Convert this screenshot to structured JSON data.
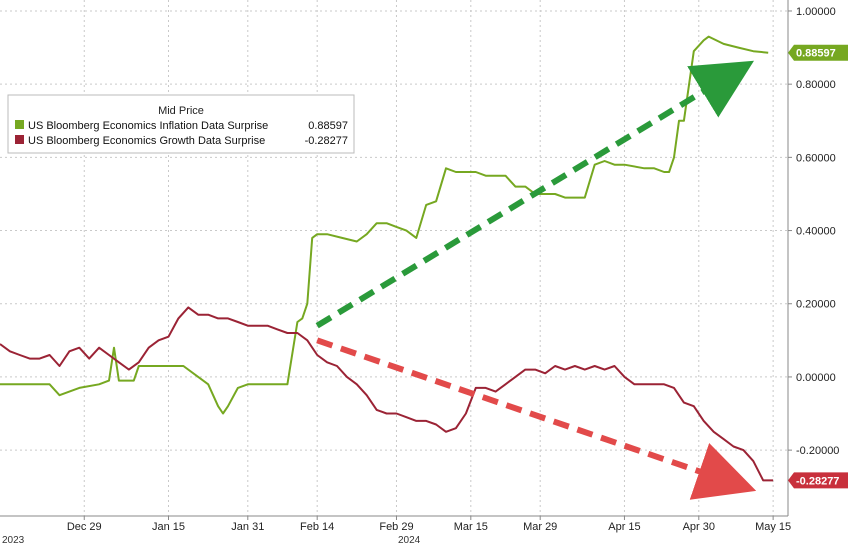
{
  "chart_data": {
    "type": "line",
    "title": "",
    "xlabel": "",
    "ylabel": "",
    "ylim": [
      -0.38,
      1.03
    ],
    "grid": true,
    "legend_placement": "top-left",
    "legend_title": "Mid Price",
    "x_ticks": [
      "Dec 29",
      "Jan 15",
      "Jan 31",
      "Feb 14",
      "Feb 29",
      "Mar 15",
      "Mar 29",
      "Apr 15",
      "Apr 30",
      "May 15"
    ],
    "x_tick_pos": [
      11,
      28,
      44,
      58,
      74,
      89,
      103,
      120,
      135,
      150
    ],
    "year_labels": [
      "2023",
      "2024"
    ],
    "y_ticks": [
      -0.2,
      0.0,
      0.2,
      0.4,
      0.6,
      0.8,
      1.0
    ],
    "y_tick_labels": [
      "-0.20000",
      "0.00000",
      "0.20000",
      "0.40000",
      "0.60000",
      "0.80000",
      "1.00000"
    ],
    "series": [
      {
        "name": "US Bloomberg Economics Inflation Data Surprise",
        "last": "0.88597",
        "color": "#76a821",
        "points": [
          [
            -6,
            -0.02
          ],
          [
            -3,
            -0.02
          ],
          [
            0,
            -0.02
          ],
          [
            4,
            -0.02
          ],
          [
            6,
            -0.05
          ],
          [
            8,
            -0.04
          ],
          [
            10,
            -0.03
          ],
          [
            14,
            -0.02
          ],
          [
            16,
            -0.01
          ],
          [
            17,
            0.08
          ],
          [
            18,
            -0.01
          ],
          [
            21,
            -0.01
          ],
          [
            22,
            0.03
          ],
          [
            24,
            0.03
          ],
          [
            28,
            0.03
          ],
          [
            31,
            0.03
          ],
          [
            34,
            0.0
          ],
          [
            36,
            -0.02
          ],
          [
            38,
            -0.08
          ],
          [
            39,
            -0.1
          ],
          [
            40,
            -0.08
          ],
          [
            42,
            -0.03
          ],
          [
            44,
            -0.02
          ],
          [
            46,
            -0.02
          ],
          [
            48,
            -0.02
          ],
          [
            50,
            -0.02
          ],
          [
            52,
            -0.02
          ],
          [
            54,
            0.15
          ],
          [
            55,
            0.16
          ],
          [
            56,
            0.2
          ],
          [
            57,
            0.38
          ],
          [
            58,
            0.39
          ],
          [
            60,
            0.39
          ],
          [
            63,
            0.38
          ],
          [
            66,
            0.37
          ],
          [
            68,
            0.39
          ],
          [
            70,
            0.42
          ],
          [
            72,
            0.42
          ],
          [
            74,
            0.41
          ],
          [
            76,
            0.4
          ],
          [
            78,
            0.38
          ],
          [
            80,
            0.47
          ],
          [
            82,
            0.48
          ],
          [
            84,
            0.57
          ],
          [
            86,
            0.56
          ],
          [
            88,
            0.56
          ],
          [
            90,
            0.56
          ],
          [
            92,
            0.55
          ],
          [
            94,
            0.55
          ],
          [
            96,
            0.55
          ],
          [
            98,
            0.52
          ],
          [
            100,
            0.52
          ],
          [
            102,
            0.5
          ],
          [
            104,
            0.5
          ],
          [
            106,
            0.5
          ],
          [
            108,
            0.49
          ],
          [
            110,
            0.49
          ],
          [
            112,
            0.49
          ],
          [
            114,
            0.58
          ],
          [
            116,
            0.59
          ],
          [
            118,
            0.58
          ],
          [
            120,
            0.58
          ],
          [
            124,
            0.57
          ],
          [
            126,
            0.57
          ],
          [
            128,
            0.56
          ],
          [
            129,
            0.56
          ],
          [
            130,
            0.6
          ],
          [
            131,
            0.7
          ],
          [
            132,
            0.7
          ],
          [
            134,
            0.89
          ],
          [
            136,
            0.92
          ],
          [
            137,
            0.93
          ],
          [
            140,
            0.91
          ],
          [
            143,
            0.9
          ],
          [
            146,
            0.89
          ],
          [
            149,
            0.88597
          ]
        ]
      },
      {
        "name": "US Bloomberg Economics Growth Data Surprise",
        "last": "-0.28277",
        "color": "#9b2335",
        "points": [
          [
            -6,
            0.09
          ],
          [
            -4,
            0.07
          ],
          [
            -2,
            0.06
          ],
          [
            0,
            0.05
          ],
          [
            2,
            0.05
          ],
          [
            4,
            0.06
          ],
          [
            6,
            0.03
          ],
          [
            8,
            0.07
          ],
          [
            10,
            0.08
          ],
          [
            12,
            0.05
          ],
          [
            14,
            0.08
          ],
          [
            16,
            0.06
          ],
          [
            18,
            0.04
          ],
          [
            20,
            0.02
          ],
          [
            22,
            0.04
          ],
          [
            24,
            0.08
          ],
          [
            26,
            0.1
          ],
          [
            28,
            0.11
          ],
          [
            30,
            0.16
          ],
          [
            32,
            0.19
          ],
          [
            34,
            0.17
          ],
          [
            36,
            0.17
          ],
          [
            38,
            0.16
          ],
          [
            40,
            0.16
          ],
          [
            42,
            0.15
          ],
          [
            44,
            0.14
          ],
          [
            46,
            0.14
          ],
          [
            48,
            0.14
          ],
          [
            50,
            0.13
          ],
          [
            52,
            0.12
          ],
          [
            54,
            0.12
          ],
          [
            56,
            0.1
          ],
          [
            58,
            0.06
          ],
          [
            60,
            0.04
          ],
          [
            62,
            0.03
          ],
          [
            64,
            0.0
          ],
          [
            66,
            -0.02
          ],
          [
            68,
            -0.05
          ],
          [
            70,
            -0.09
          ],
          [
            72,
            -0.1
          ],
          [
            74,
            -0.1
          ],
          [
            76,
            -0.11
          ],
          [
            78,
            -0.12
          ],
          [
            80,
            -0.12
          ],
          [
            82,
            -0.13
          ],
          [
            84,
            -0.15
          ],
          [
            86,
            -0.14
          ],
          [
            88,
            -0.1
          ],
          [
            90,
            -0.03
          ],
          [
            92,
            -0.03
          ],
          [
            94,
            -0.04
          ],
          [
            96,
            -0.02
          ],
          [
            98,
            0.0
          ],
          [
            100,
            0.02
          ],
          [
            102,
            0.02
          ],
          [
            104,
            0.01
          ],
          [
            106,
            0.03
          ],
          [
            108,
            0.02
          ],
          [
            110,
            0.03
          ],
          [
            112,
            0.02
          ],
          [
            114,
            0.03
          ],
          [
            116,
            0.02
          ],
          [
            118,
            0.03
          ],
          [
            120,
            0.0
          ],
          [
            122,
            -0.02
          ],
          [
            124,
            -0.02
          ],
          [
            126,
            -0.02
          ],
          [
            128,
            -0.02
          ],
          [
            130,
            -0.03
          ],
          [
            132,
            -0.07
          ],
          [
            134,
            -0.08
          ],
          [
            136,
            -0.12
          ],
          [
            138,
            -0.15
          ],
          [
            140,
            -0.17
          ],
          [
            142,
            -0.19
          ],
          [
            144,
            -0.2
          ],
          [
            146,
            -0.23
          ],
          [
            148,
            -0.28277
          ],
          [
            150,
            -0.28277
          ]
        ]
      }
    ],
    "annotations": [
      {
        "kind": "arrow",
        "color": "#2a9a3a",
        "from": [
          58,
          0.14
        ],
        "to": [
          142,
          0.83
        ]
      },
      {
        "kind": "arrow",
        "color": "#e24a4a",
        "from": [
          58,
          0.1
        ],
        "to": [
          142,
          -0.29
        ]
      }
    ]
  }
}
